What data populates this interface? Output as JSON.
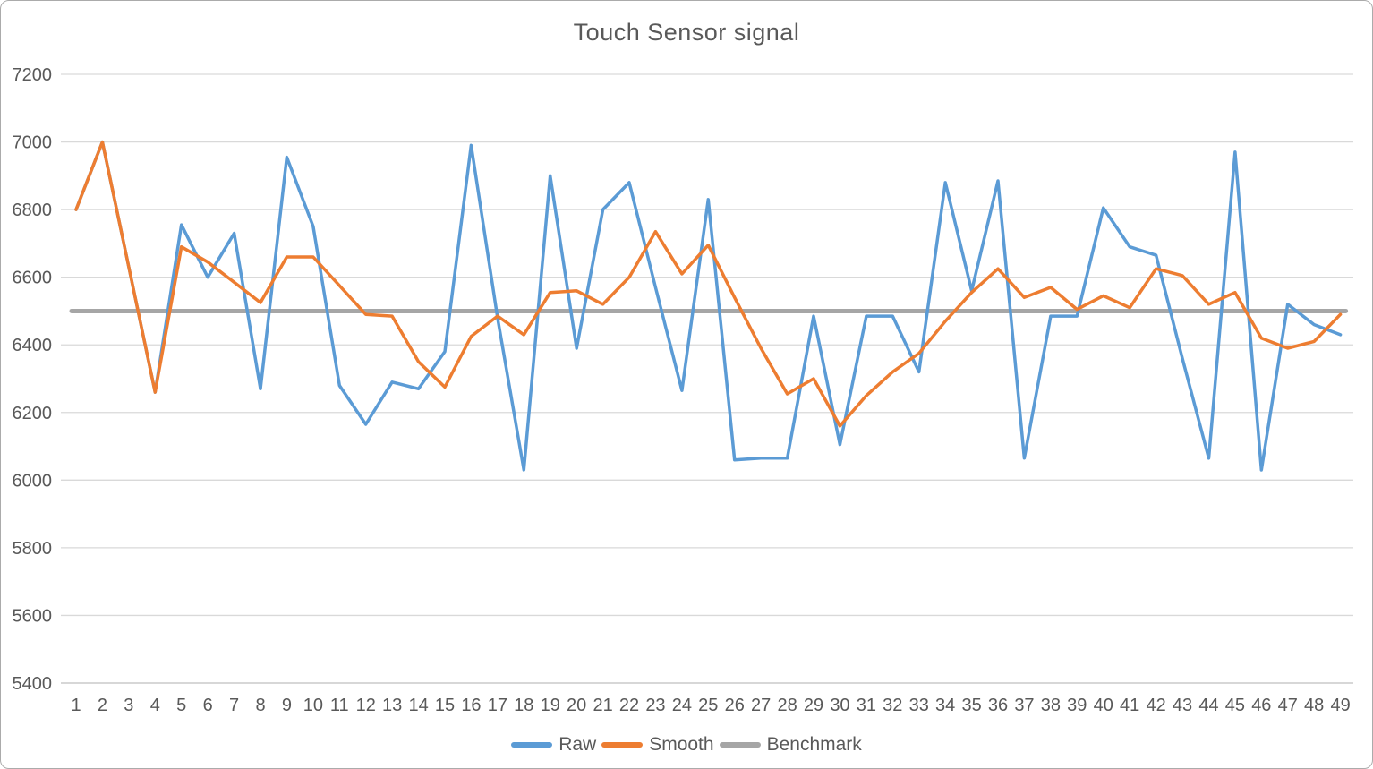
{
  "chart_data": {
    "type": "line",
    "title": "Touch Sensor signal",
    "xlabel": "",
    "ylabel": "",
    "categories": [
      "1",
      "2",
      "3",
      "4",
      "5",
      "6",
      "7",
      "8",
      "9",
      "10",
      "11",
      "12",
      "13",
      "14",
      "15",
      "16",
      "17",
      "18",
      "19",
      "20",
      "21",
      "22",
      "23",
      "24",
      "25",
      "26",
      "27",
      "28",
      "29",
      "30",
      "31",
      "32",
      "33",
      "34",
      "35",
      "36",
      "37",
      "38",
      "39",
      "40",
      "41",
      "42",
      "43",
      "44",
      "45",
      "46",
      "47",
      "48",
      "49"
    ],
    "ylim": [
      5400,
      7200
    ],
    "yticks": [
      7200,
      7000,
      6800,
      6600,
      6400,
      6200,
      6000,
      5800,
      5600,
      5400
    ],
    "grid": true,
    "legend_position": "bottom",
    "series": [
      {
        "name": "Raw",
        "color": "#5B9BD5",
        "values": [
          6800,
          7000,
          6630,
          6260,
          6755,
          6600,
          6730,
          6270,
          6955,
          6750,
          6280,
          6165,
          6290,
          6270,
          6380,
          6990,
          6480,
          6030,
          6900,
          6390,
          6800,
          6880,
          6570,
          6265,
          6830,
          6060,
          6065,
          6065,
          6485,
          6105,
          6485,
          6485,
          6320,
          6880,
          6560,
          6885,
          6065,
          6485,
          6485,
          6805,
          6690,
          6665,
          6360,
          6065,
          6970,
          6030,
          6520,
          6460,
          6430
        ]
      },
      {
        "name": "Smooth",
        "color": "#ED7D31",
        "values": [
          6800,
          7000,
          6630,
          6260,
          6690,
          6645,
          6585,
          6525,
          6660,
          6660,
          6575,
          6490,
          6485,
          6350,
          6275,
          6425,
          6485,
          6430,
          6555,
          6560,
          6520,
          6600,
          6735,
          6610,
          6695,
          6540,
          6390,
          6255,
          6300,
          6160,
          6250,
          6320,
          6375,
          6470,
          6555,
          6625,
          6540,
          6570,
          6505,
          6545,
          6510,
          6625,
          6605,
          6520,
          6555,
          6420,
          6390,
          6410,
          6490
        ]
      },
      {
        "name": "Benchmark",
        "color": "#A6A6A6",
        "constant": 6500
      }
    ],
    "colors": {
      "gridline": "#D9D9D9",
      "baseline": "#BFBFBF",
      "text": "#595959"
    }
  }
}
